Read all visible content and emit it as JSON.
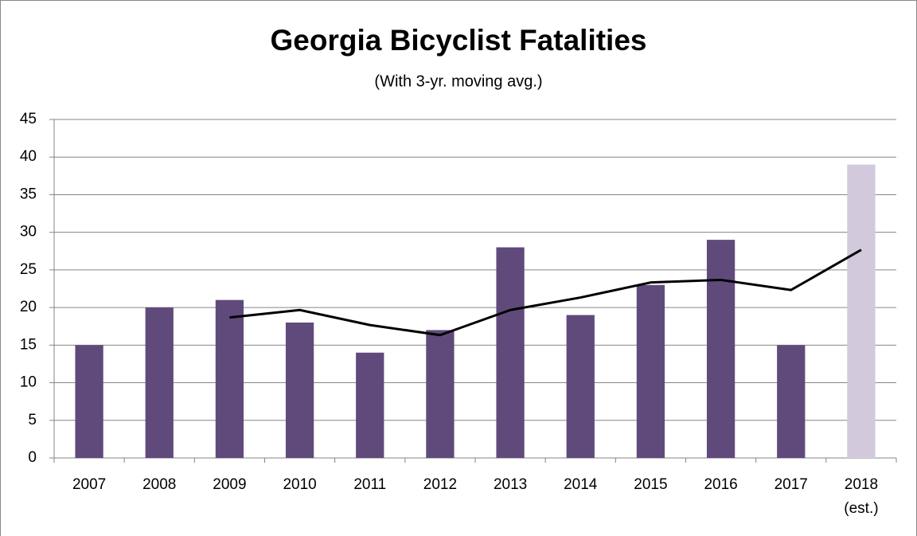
{
  "chart_data": {
    "type": "bar",
    "title": "Georgia Bicyclist Fatalities",
    "subtitle": "(With 3-yr. moving avg.)",
    "categories": [
      "2007",
      "2008",
      "2009",
      "2010",
      "2011",
      "2012",
      "2013",
      "2014",
      "2015",
      "2016",
      "2017",
      "2018 (est.)"
    ],
    "series": [
      {
        "type": "bar",
        "colors": [
          "#604a7b",
          "#604a7b",
          "#604a7b",
          "#604a7b",
          "#604a7b",
          "#604a7b",
          "#604a7b",
          "#604a7b",
          "#604a7b",
          "#604a7b",
          "#604a7b",
          "#d2cadc"
        ],
        "values": [
          15,
          20,
          21,
          18,
          14,
          17,
          28,
          19,
          23,
          29,
          15,
          39
        ]
      },
      {
        "type": "line",
        "color": "#000000",
        "values": [
          null,
          null,
          18.67,
          19.67,
          17.67,
          16.33,
          19.67,
          21.33,
          23.33,
          23.67,
          22.33,
          27.67
        ]
      }
    ],
    "ylim": [
      0,
      45
    ],
    "yticks": [
      0,
      5,
      10,
      15,
      20,
      25,
      30,
      35,
      40,
      45
    ],
    "grid": true
  }
}
